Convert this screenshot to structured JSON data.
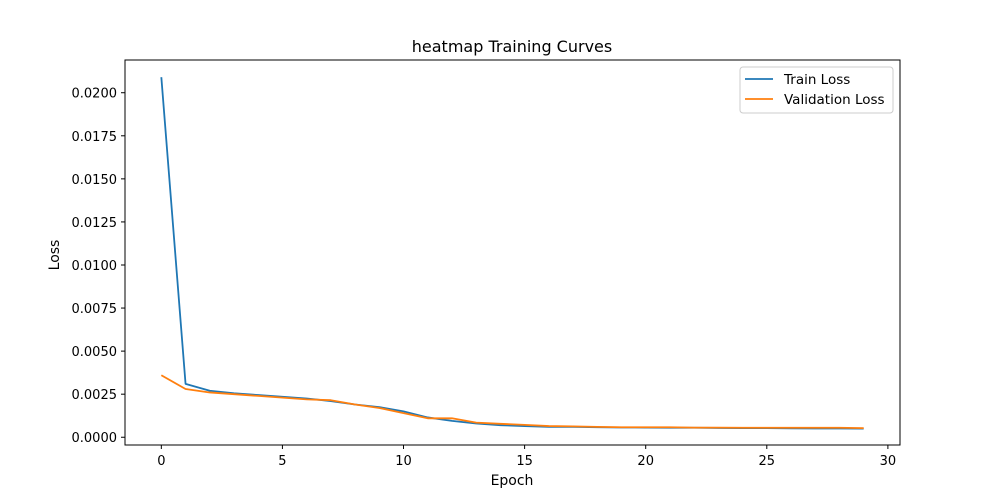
{
  "chart_data": {
    "type": "line",
    "title": "heatmap Training Curves",
    "xlabel": "Epoch",
    "ylabel": "Loss",
    "xlim": [
      -1.5,
      30.5
    ],
    "ylim": [
      -0.00045,
      0.0219
    ],
    "x_ticks": [
      0,
      5,
      10,
      15,
      20,
      25,
      30
    ],
    "x_tick_labels": [
      "0",
      "5",
      "10",
      "15",
      "20",
      "25",
      "30"
    ],
    "y_ticks": [
      0.0,
      0.0025,
      0.005,
      0.0075,
      0.01,
      0.0125,
      0.015,
      0.0175,
      0.02
    ],
    "y_tick_labels": [
      "0.0000",
      "0.0025",
      "0.0050",
      "0.0075",
      "0.0100",
      "0.0125",
      "0.0150",
      "0.0175",
      "0.0200"
    ],
    "grid": false,
    "legend_position": "top-right",
    "x": [
      0,
      1,
      2,
      3,
      4,
      5,
      6,
      7,
      8,
      9,
      10,
      11,
      12,
      13,
      14,
      15,
      16,
      17,
      18,
      19,
      20,
      21,
      22,
      23,
      24,
      25,
      26,
      27,
      28,
      29
    ],
    "series": [
      {
        "name": "Train Loss",
        "color": "#1f77b4",
        "values": [
          0.0209,
          0.0031,
          0.0027,
          0.00255,
          0.00245,
          0.00235,
          0.00225,
          0.0021,
          0.0019,
          0.00175,
          0.0015,
          0.00115,
          0.00095,
          0.0008,
          0.0007,
          0.00065,
          0.0006,
          0.0006,
          0.00058,
          0.00057,
          0.00056,
          0.00055,
          0.00055,
          0.00054,
          0.00053,
          0.00053,
          0.00052,
          0.00051,
          0.00051,
          0.0005
        ]
      },
      {
        "name": "Validation Loss",
        "color": "#ff7f0e",
        "values": [
          0.0036,
          0.0028,
          0.0026,
          0.0025,
          0.0024,
          0.0023,
          0.0022,
          0.00215,
          0.0019,
          0.0017,
          0.0014,
          0.0011,
          0.0011,
          0.00085,
          0.00078,
          0.00072,
          0.00065,
          0.00063,
          0.0006,
          0.00058,
          0.00058,
          0.00058,
          0.00056,
          0.00056,
          0.00055,
          0.00055,
          0.00055,
          0.00055,
          0.00055,
          0.00053
        ]
      }
    ]
  }
}
